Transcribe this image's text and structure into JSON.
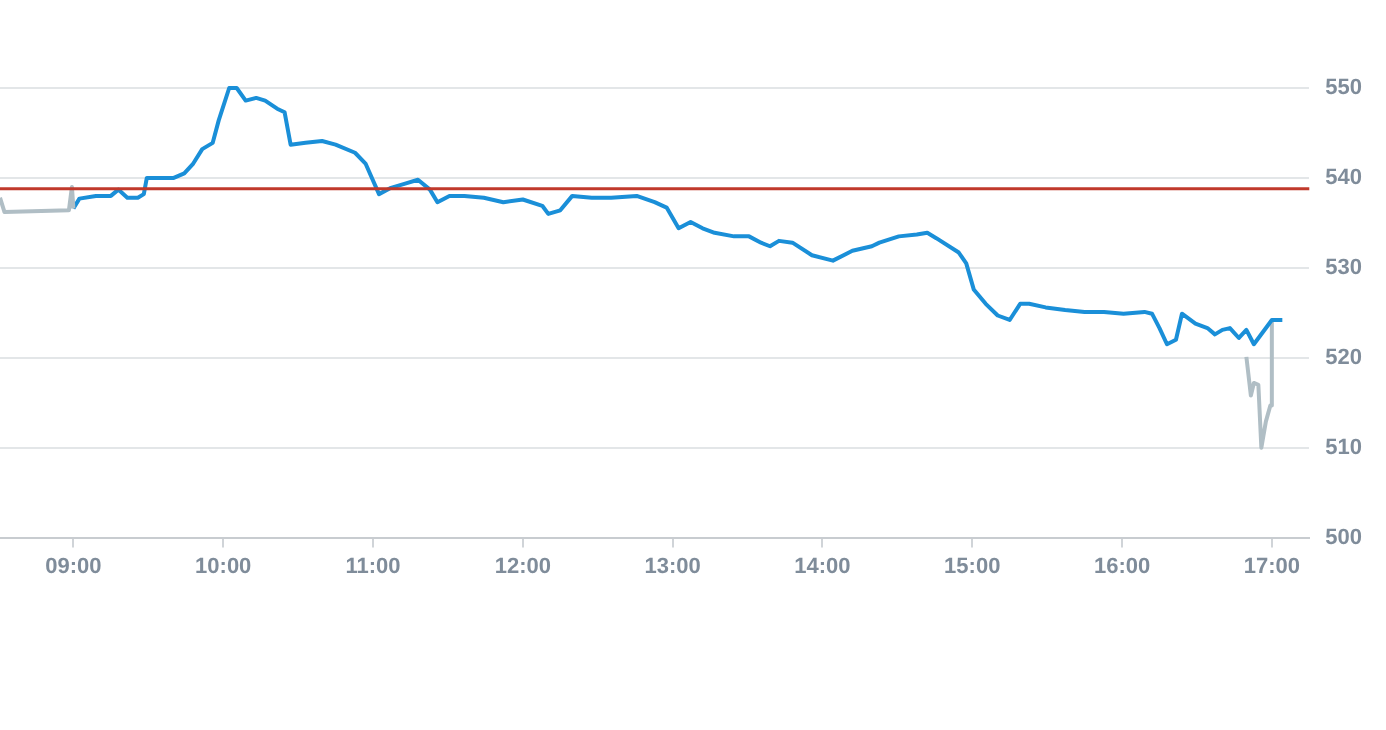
{
  "chart_data": {
    "type": "line",
    "xlim": [
      8.51,
      17.25
    ],
    "ylim": [
      500,
      550
    ],
    "xticks": [
      {
        "value": 9,
        "label": "09:00"
      },
      {
        "value": 10,
        "label": "10:00"
      },
      {
        "value": 11,
        "label": "11:00"
      },
      {
        "value": 12,
        "label": "12:00"
      },
      {
        "value": 13,
        "label": "13:00"
      },
      {
        "value": 14,
        "label": "14:00"
      },
      {
        "value": 15,
        "label": "15:00"
      },
      {
        "value": 16,
        "label": "16:00"
      },
      {
        "value": 17,
        "label": "17:00"
      }
    ],
    "yticks": [
      500,
      510,
      520,
      530,
      540,
      550
    ],
    "grid": "y",
    "legend": false,
    "marker": "none",
    "line_style": "solid",
    "ref_lines": [
      {
        "axis": "y",
        "value": 538.8,
        "color": "#c0392b"
      }
    ],
    "series": [
      {
        "color": "#b0bec5",
        "x": [
          8.51,
          8.54,
          8.97,
          8.99,
          9.0
        ],
        "values": [
          537.8,
          536.2,
          536.4,
          539,
          536.6
        ]
      },
      {
        "color": "#1a8fd8",
        "x": [
          9.0,
          9.04,
          9.15,
          9.25,
          9.3,
          9.36,
          9.43,
          9.47,
          9.49,
          9.67,
          9.74,
          9.8,
          9.86,
          9.93,
          9.97,
          10.04,
          10.09,
          10.15,
          10.22,
          10.28,
          10.36,
          10.41,
          10.45,
          10.55,
          10.66,
          10.75,
          10.88,
          10.95,
          11.04,
          11.12,
          11.22,
          11.3,
          11.38,
          11.43,
          11.51,
          11.61,
          11.74,
          11.87,
          12.0,
          12.13,
          12.17,
          12.25,
          12.33,
          12.46,
          12.59,
          12.76,
          12.88,
          12.96,
          13.04,
          13.12,
          13.2,
          13.28,
          13.41,
          13.51,
          13.59,
          13.65,
          13.71,
          13.8,
          13.93,
          14.07,
          14.2,
          14.33,
          14.38,
          14.51,
          14.63,
          14.7,
          14.76,
          14.91,
          14.96,
          15.01,
          15.09,
          15.17,
          15.25,
          15.32,
          15.38,
          15.49,
          15.62,
          15.75,
          15.88,
          16.01,
          16.15,
          16.2,
          16.25,
          16.3,
          16.36,
          16.4,
          16.49,
          16.57,
          16.62,
          16.67,
          16.72,
          16.78,
          16.83,
          16.88,
          17.0,
          17.07
        ],
        "values": [
          536.6,
          537.7,
          538,
          538,
          538.7,
          537.8,
          537.8,
          538.2,
          540,
          540,
          540.5,
          541.6,
          543.2,
          543.9,
          546.4,
          550,
          550,
          548.6,
          548.9,
          548.6,
          547.7,
          547.3,
          543.7,
          543.9,
          544.1,
          543.7,
          542.8,
          541.6,
          538.2,
          538.9,
          539.4,
          539.8,
          538.7,
          537.3,
          538,
          538,
          537.8,
          537.3,
          537.6,
          536.9,
          536,
          536.4,
          538,
          537.8,
          537.8,
          538,
          537.3,
          536.7,
          534.4,
          535.1,
          534.4,
          533.9,
          533.5,
          533.5,
          532.8,
          532.4,
          533,
          532.8,
          531.4,
          530.8,
          531.9,
          532.4,
          532.8,
          533.5,
          533.7,
          533.9,
          533.3,
          531.7,
          530.5,
          527.6,
          526,
          524.7,
          524.2,
          526,
          526,
          525.6,
          525.3,
          525.1,
          525.1,
          524.9,
          525.1,
          524.9,
          523.3,
          521.5,
          522,
          524.9,
          523.8,
          523.3,
          522.6,
          523.1,
          523.3,
          522.2,
          523.1,
          521.5,
          524.2,
          524.2
        ]
      },
      {
        "color": "#b0bec5",
        "x": [
          16.83,
          16.86,
          16.88,
          16.91,
          16.93,
          16.96,
          16.99,
          17.0
        ],
        "values": [
          520.1,
          515.8,
          517.2,
          517,
          510,
          512.9,
          514.7,
          524.2
        ]
      }
    ]
  }
}
